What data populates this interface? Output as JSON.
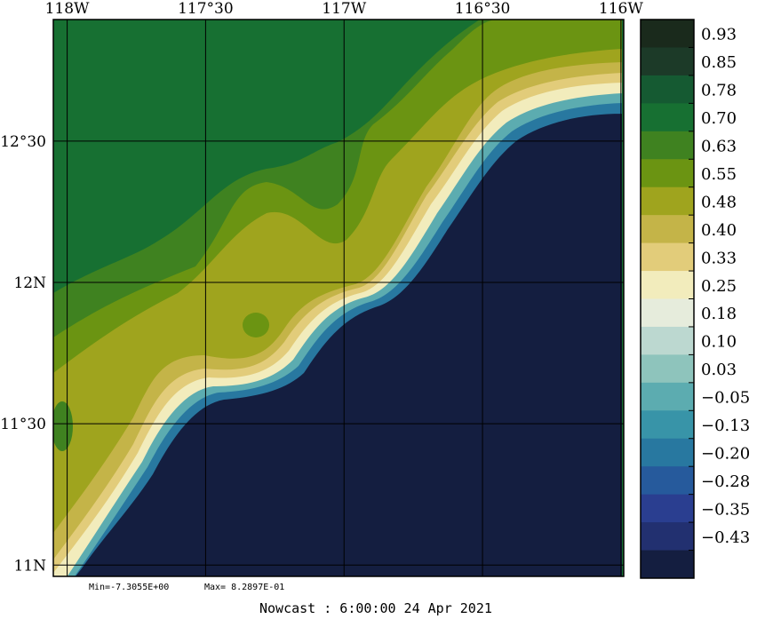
{
  "chart_data": {
    "type": "heatmap",
    "x_axis": {
      "ticks": [
        {
          "value": -118.0,
          "label": "118W"
        },
        {
          "value": -117.5,
          "label": "117°30"
        },
        {
          "value": -117.0,
          "label": "117W"
        },
        {
          "value": -116.5,
          "label": "116°30"
        },
        {
          "value": -116.0,
          "label": "116W"
        }
      ],
      "range": [
        -118.05,
        -115.99
      ]
    },
    "y_axis": {
      "ticks": [
        {
          "value": 11.0,
          "label": "11N"
        },
        {
          "value": 11.5,
          "label": "11°30"
        },
        {
          "value": 12.0,
          "label": "12N"
        },
        {
          "value": 12.5,
          "label": "12°30"
        }
      ],
      "range": [
        10.96,
        12.93
      ]
    },
    "colorbar": {
      "labels": [
        "0.93",
        "0.85",
        "0.78",
        "0.70",
        "0.63",
        "0.55",
        "0.48",
        "0.40",
        "0.33",
        "0.25",
        "0.18",
        "0.10",
        "0.03",
        "−0.05",
        "−0.13",
        "−0.20",
        "−0.28",
        "−0.35",
        "−0.43"
      ],
      "colors": [
        "#1a2a1c",
        "#1c3a28",
        "#155a32",
        "#177032",
        "#3f8220",
        "#6b9412",
        "#9fa41e",
        "#c4b448",
        "#e2cc7a",
        "#f2ecbc",
        "#e6ecdc",
        "#bcd8d0",
        "#8ec4bc",
        "#5cacb0",
        "#3894a8",
        "#2878a0",
        "#265a9c",
        "#2a3e90",
        "#223070",
        "#141e40"
      ]
    },
    "field_summary": {
      "min_label": "Min=-7.3055E+00",
      "max_label": "Max= 8.2897E-01"
    },
    "footer": "Nowcast :  6:00:00  24 Apr 2021",
    "zones": [
      {
        "id": "z_olive",
        "color": "#9fa41e"
      },
      {
        "id": "z_olive2",
        "color": "#c4b448"
      },
      {
        "id": "z_green",
        "color": "#6b9412"
      },
      {
        "id": "z_green2",
        "color": "#3f8220"
      },
      {
        "id": "z_dark",
        "color": "#177032"
      },
      {
        "id": "z_darker",
        "color": "#155a32"
      },
      {
        "id": "z_navy",
        "color": "#141e40"
      }
    ]
  }
}
